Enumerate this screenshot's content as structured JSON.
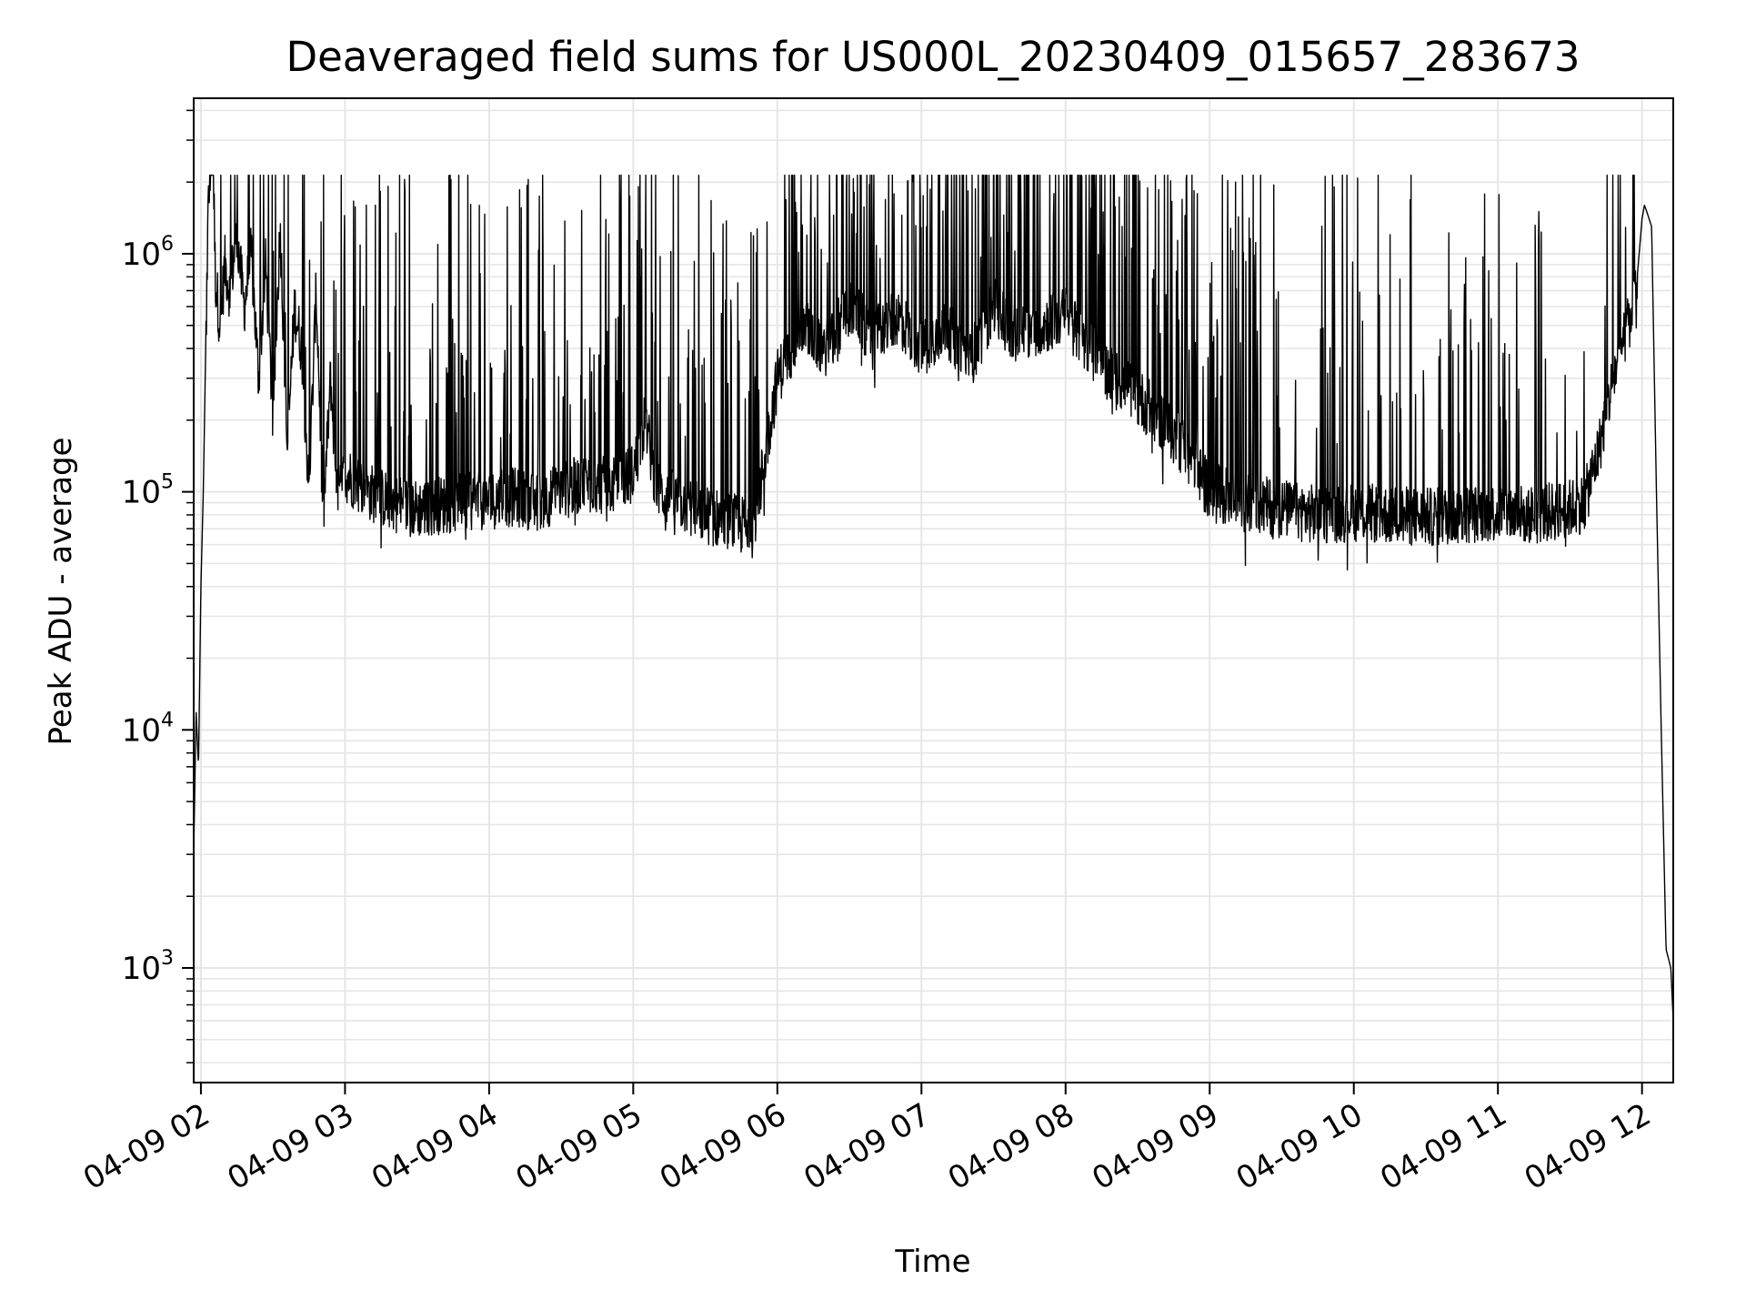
{
  "chart_data": {
    "type": "line",
    "title": "Deaveraged field sums for US000L_20230409_015657_283673",
    "xlabel": "Time",
    "ylabel": "Peak ADU - average",
    "yscale": "log",
    "ylim": [
      330,
      4500000
    ],
    "xlim": [
      "2023-04-09 01:57",
      "2023-04-09 12:13"
    ],
    "grid": true,
    "line_color": "#000000",
    "grid_color": "#e6e6e6",
    "y_ticks": [
      {
        "value": 1000,
        "base": "10",
        "exp": "3"
      },
      {
        "value": 10000,
        "base": "10",
        "exp": "4"
      },
      {
        "value": 100000,
        "base": "10",
        "exp": "5"
      },
      {
        "value": 1000000,
        "base": "10",
        "exp": "6"
      }
    ],
    "x_ticks": [
      {
        "value": "2023-04-09 02:00",
        "label": "04-09 02"
      },
      {
        "value": "2023-04-09 03:00",
        "label": "04-09 03"
      },
      {
        "value": "2023-04-09 04:00",
        "label": "04-09 04"
      },
      {
        "value": "2023-04-09 05:00",
        "label": "04-09 05"
      },
      {
        "value": "2023-04-09 06:00",
        "label": "04-09 06"
      },
      {
        "value": "2023-04-09 07:00",
        "label": "04-09 07"
      },
      {
        "value": "2023-04-09 08:00",
        "label": "04-09 08"
      },
      {
        "value": "2023-04-09 09:00",
        "label": "04-09 09"
      },
      {
        "value": "2023-04-09 10:00",
        "label": "04-09 10"
      },
      {
        "value": "2023-04-09 11:00",
        "label": "04-09 11"
      },
      {
        "value": "2023-04-09 12:00",
        "label": "04-09 12"
      }
    ],
    "series": [
      {
        "x": [
          "2023-04-09 01:57",
          "2023-04-09 01:58",
          "2023-04-09 01:59",
          "2023-04-09 02:00",
          "2023-04-09 02:01",
          "2023-04-09 02:02",
          "2023-04-09 02:03",
          "2023-04-09 02:04",
          "2023-04-09 02:05",
          "2023-04-09 02:06",
          "2023-04-09 02:08",
          "2023-04-09 02:10",
          "2023-04-09 02:12",
          "2023-04-09 02:15",
          "2023-04-09 02:18",
          "2023-04-09 02:21",
          "2023-04-09 02:24",
          "2023-04-09 02:27",
          "2023-04-09 02:30",
          "2023-04-09 02:33",
          "2023-04-09 02:36",
          "2023-04-09 02:39",
          "2023-04-09 02:42",
          "2023-04-09 02:45",
          "2023-04-09 02:48",
          "2023-04-09 02:51",
          "2023-04-09 02:54",
          "2023-04-09 02:57",
          "2023-04-09 03:00",
          "2023-04-09 03:10",
          "2023-04-09 03:20",
          "2023-04-09 03:30",
          "2023-04-09 03:40",
          "2023-04-09 03:50",
          "2023-04-09 04:00",
          "2023-04-09 04:10",
          "2023-04-09 04:20",
          "2023-04-09 04:30",
          "2023-04-09 04:40",
          "2023-04-09 04:50",
          "2023-04-09 05:00",
          "2023-04-09 05:05",
          "2023-04-09 05:10",
          "2023-04-09 05:20",
          "2023-04-09 05:30",
          "2023-04-09 05:40",
          "2023-04-09 05:50",
          "2023-04-09 06:00",
          "2023-04-09 06:10",
          "2023-04-09 06:20",
          "2023-04-09 06:30",
          "2023-04-09 06:40",
          "2023-04-09 06:50",
          "2023-04-09 07:00",
          "2023-04-09 07:10",
          "2023-04-09 07:20",
          "2023-04-09 07:30",
          "2023-04-09 07:40",
          "2023-04-09 07:50",
          "2023-04-09 08:00",
          "2023-04-09 08:10",
          "2023-04-09 08:20",
          "2023-04-09 08:30",
          "2023-04-09 08:40",
          "2023-04-09 08:50",
          "2023-04-09 09:00",
          "2023-04-09 09:15",
          "2023-04-09 09:30",
          "2023-04-09 09:45",
          "2023-04-09 10:00",
          "2023-04-09 10:15",
          "2023-04-09 10:30",
          "2023-04-09 10:45",
          "2023-04-09 11:00",
          "2023-04-09 11:15",
          "2023-04-09 11:30",
          "2023-04-09 11:36",
          "2023-04-09 11:42",
          "2023-04-09 11:48",
          "2023-04-09 11:54",
          "2023-04-09 11:58",
          "2023-04-09 12:00",
          "2023-04-09 12:01",
          "2023-04-09 12:02",
          "2023-04-09 12:04",
          "2023-04-09 12:06",
          "2023-04-09 12:08",
          "2023-04-09 12:10",
          "2023-04-09 12:12",
          "2023-04-09 12:13"
        ],
        "y": [
          3000,
          12000,
          7000,
          40000,
          100000,
          400000,
          1500000,
          2500000,
          3000000,
          800000,
          500000,
          900000,
          700000,
          1200000,
          600000,
          1000000,
          300000,
          900000,
          200000,
          1300000,
          150000,
          600000,
          400000,
          100000,
          700000,
          80000,
          300000,
          90000,
          120000,
          100000,
          90000,
          85000,
          88000,
          90000,
          92000,
          95000,
          90000,
          100000,
          110000,
          105000,
          120000,
          200000,
          100000,
          90000,
          80000,
          75000,
          70000,
          300000,
          500000,
          400000,
          600000,
          450000,
          550000,
          400000,
          500000,
          350000,
          600000,
          450000,
          500000,
          550000,
          400000,
          300000,
          250000,
          200000,
          150000,
          100000,
          90000,
          85000,
          80000,
          82000,
          80000,
          78000,
          80000,
          82000,
          80000,
          85000,
          90000,
          150000,
          300000,
          500000,
          800000,
          1400000,
          1600000,
          1500000,
          1300000,
          100000,
          10000,
          1200,
          1000,
          600
        ]
      }
    ]
  }
}
